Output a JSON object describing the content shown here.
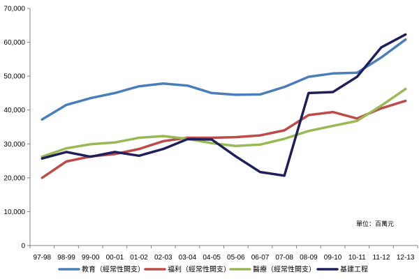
{
  "chart_data": {
    "type": "line",
    "title": "",
    "xlabel": "",
    "ylabel": "",
    "unit_note": "單位：百萬元",
    "ylim": [
      0,
      70000
    ],
    "yticks": [
      0,
      10000,
      20000,
      30000,
      40000,
      50000,
      60000,
      70000
    ],
    "ytick_labels": [
      "0",
      "10,000",
      "20,000",
      "30,000",
      "40,000",
      "50,000",
      "60,000",
      "70,000"
    ],
    "grid": false,
    "legend_position": "bottom",
    "categories": [
      "97-98",
      "98-99",
      "99-00",
      "00-01",
      "01-02",
      "02-03",
      "03-04",
      "04-05",
      "05-06",
      "06-07",
      "07-08",
      "08-09",
      "09-10",
      "10-11",
      "11-12",
      "12-13"
    ],
    "series": [
      {
        "name": "教育（經常性開支）",
        "color": "#4A7EBB",
        "values": [
          37200,
          41500,
          43500,
          45000,
          47000,
          47800,
          47200,
          45000,
          44500,
          44600,
          46800,
          49800,
          50800,
          51000,
          55500,
          60800
        ]
      },
      {
        "name": "福利（經常性開支）",
        "color": "#BE4B48",
        "values": [
          20000,
          24800,
          26300,
          27000,
          28500,
          30800,
          31800,
          31800,
          32000,
          32500,
          34000,
          38500,
          39400,
          37500,
          40500,
          42700
        ]
      },
      {
        "name": "醫療（經常性開支）",
        "color": "#98B954",
        "values": [
          26200,
          28700,
          29900,
          30400,
          31800,
          32300,
          31500,
          30200,
          29400,
          29800,
          31500,
          33800,
          35300,
          36800,
          41300,
          46200
        ]
      },
      {
        "name": "基建工程",
        "color": "#1F1F5C",
        "values": [
          25700,
          27600,
          26200,
          27600,
          26500,
          28500,
          31400,
          31300,
          26300,
          21700,
          20600,
          45000,
          45300,
          49800,
          58500,
          62300
        ]
      }
    ]
  }
}
